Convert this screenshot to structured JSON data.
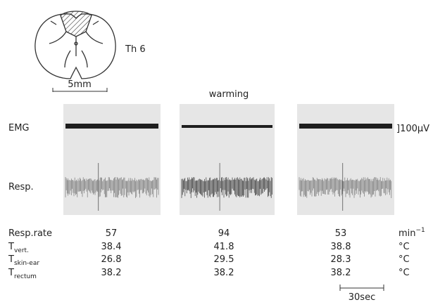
{
  "header": {
    "segment": "Th 6",
    "scale": "5mm",
    "condition": "warming"
  },
  "traces": {
    "emg": "EMG",
    "resp": "Resp.",
    "calibration": "]100µV"
  },
  "table": {
    "rows": [
      {
        "label": "Resp.rate",
        "values": [
          57,
          94,
          53
        ],
        "unit": "min",
        "unit_sup": "−1"
      },
      {
        "label": "T",
        "sub": "vert.",
        "values": [
          38.4,
          41.8,
          38.8
        ],
        "unit": "°C"
      },
      {
        "label": "T",
        "sub": "skin-ear",
        "values": [
          26.8,
          29.5,
          28.3
        ],
        "unit": "°C"
      },
      {
        "label": "T",
        "sub": "rectum",
        "values": [
          38.2,
          38.2,
          38.2
        ],
        "unit": "°C"
      }
    ]
  },
  "time_scale": "30sec"
}
